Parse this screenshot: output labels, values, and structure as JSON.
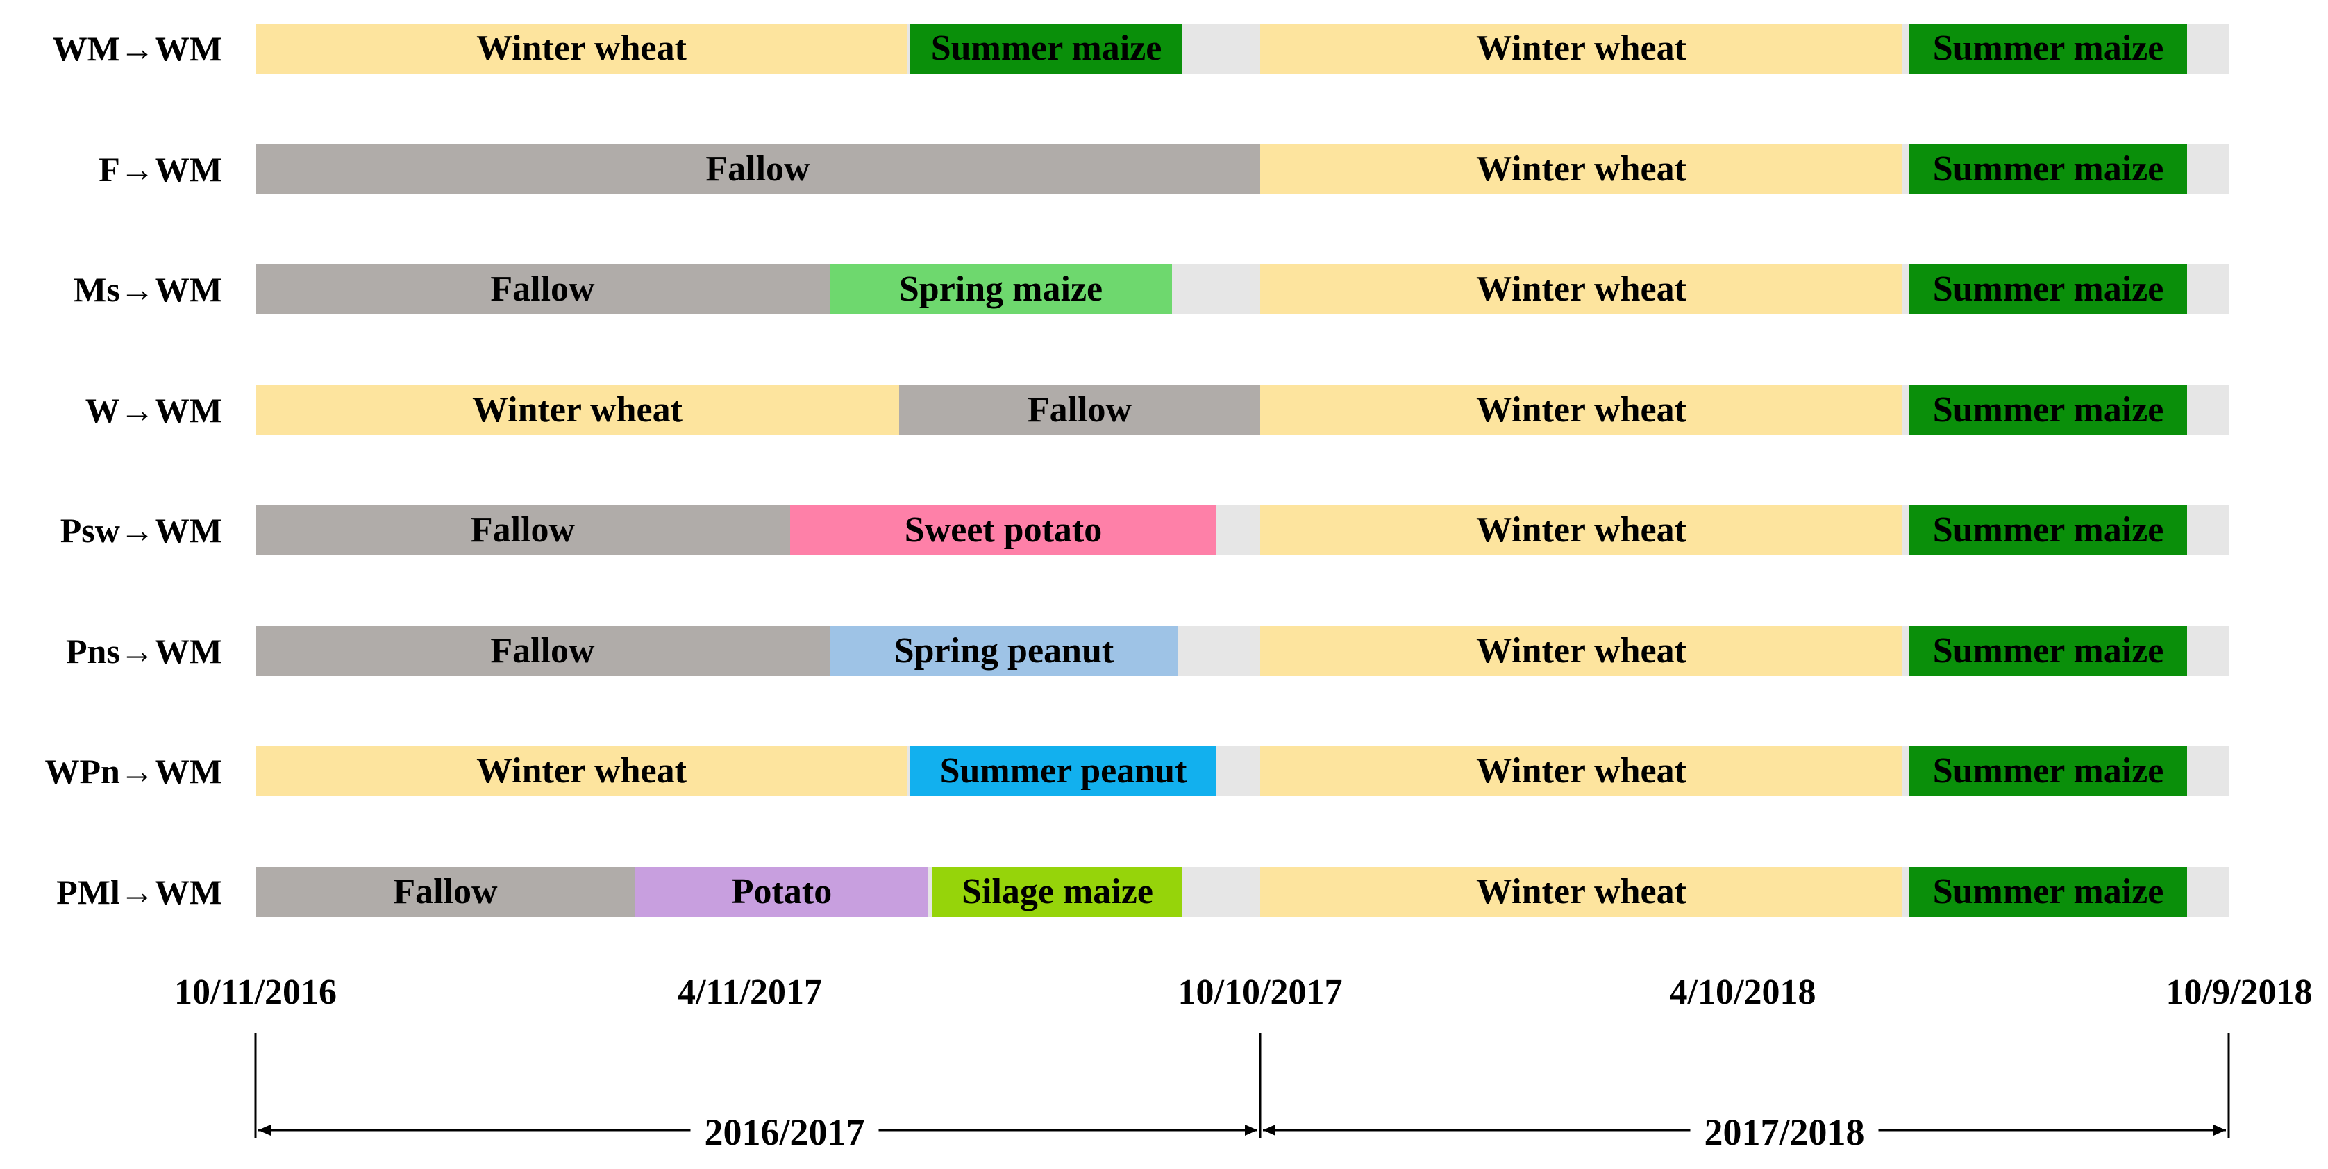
{
  "colors": {
    "winter_wheat": "#fde49e",
    "summer_maize": "#0a8f0a",
    "fallow": "#b0aca9",
    "spring_maize": "#6ed86e",
    "sweet_potato": "#fe80a8",
    "spring_peanut": "#9ec3e6",
    "summer_peanut": "#12b0ee",
    "potato": "#c89fdf",
    "silage_maize": "#96d40a",
    "gap": "#e6e6e6"
  },
  "rows": [
    {
      "label": "WM→WM",
      "segments": [
        {
          "label": "Winter wheat",
          "crop": "winter_wheat"
        },
        {
          "label": "Summer maize",
          "crop": "summer_maize"
        },
        {
          "label": "Winter wheat",
          "crop": "winter_wheat"
        },
        {
          "label": "Summer maize",
          "crop": "summer_maize"
        }
      ]
    },
    {
      "label": "F→WM",
      "segments": [
        {
          "label": "Fallow",
          "crop": "fallow"
        },
        {
          "label": "Winter wheat",
          "crop": "winter_wheat"
        },
        {
          "label": "Summer maize",
          "crop": "summer_maize"
        }
      ]
    },
    {
      "label": "Ms→WM",
      "segments": [
        {
          "label": "Fallow",
          "crop": "fallow"
        },
        {
          "label": "Spring maize",
          "crop": "spring_maize"
        },
        {
          "label": "Winter wheat",
          "crop": "winter_wheat"
        },
        {
          "label": "Summer maize",
          "crop": "summer_maize"
        }
      ]
    },
    {
      "label": "W→WM",
      "segments": [
        {
          "label": "Winter wheat",
          "crop": "winter_wheat"
        },
        {
          "label": "Fallow",
          "crop": "fallow"
        },
        {
          "label": "Winter wheat",
          "crop": "winter_wheat"
        },
        {
          "label": "Summer maize",
          "crop": "summer_maize"
        }
      ]
    },
    {
      "label": "Psw→WM",
      "segments": [
        {
          "label": "Fallow",
          "crop": "fallow"
        },
        {
          "label": "Sweet potato",
          "crop": "sweet_potato"
        },
        {
          "label": "Winter wheat",
          "crop": "winter_wheat"
        },
        {
          "label": "Summer maize",
          "crop": "summer_maize"
        }
      ]
    },
    {
      "label": "Pns→WM",
      "segments": [
        {
          "label": "Fallow",
          "crop": "fallow"
        },
        {
          "label": "Spring peanut",
          "crop": "spring_peanut"
        },
        {
          "label": "Winter wheat",
          "crop": "winter_wheat"
        },
        {
          "label": "Summer maize",
          "crop": "summer_maize"
        }
      ]
    },
    {
      "label": "WPn→WM",
      "segments": [
        {
          "label": "Winter wheat",
          "crop": "winter_wheat"
        },
        {
          "label": "Summer peanut",
          "crop": "summer_peanut"
        },
        {
          "label": "Winter wheat",
          "crop": "winter_wheat"
        },
        {
          "label": "Summer maize",
          "crop": "summer_maize"
        }
      ]
    },
    {
      "label": "PMl→WM",
      "segments": [
        {
          "label": "Fallow",
          "crop": "fallow"
        },
        {
          "label": "Potato",
          "crop": "potato"
        },
        {
          "label": "Silage maize",
          "crop": "silage_maize"
        },
        {
          "label": "Winter wheat",
          "crop": "winter_wheat"
        },
        {
          "label": "Summer maize",
          "crop": "summer_maize"
        }
      ]
    }
  ],
  "timeline": {
    "dates": [
      "10/11/2016",
      "4/11/2017",
      "10/10/2017",
      "4/10/2018",
      "10/9/2018"
    ],
    "seasons": [
      "2016/2017",
      "2017/2018"
    ]
  }
}
